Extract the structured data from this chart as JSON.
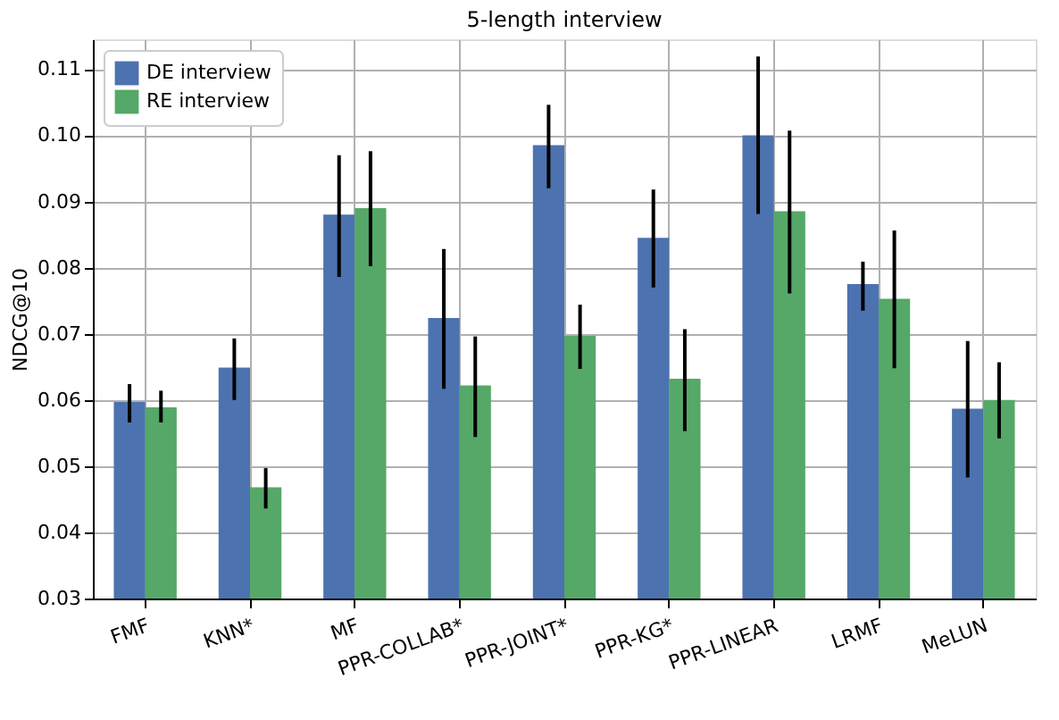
{
  "chart_data": {
    "type": "bar",
    "title": "5-length interview",
    "ylabel": "NDCG@10",
    "categories": [
      "FMF",
      "KNN*",
      "MF",
      "PPR-COLLAB*",
      "PPR-JOINT*",
      "PPR-KG*",
      "PPR-LINEAR",
      "LRMF",
      "MeLUN"
    ],
    "series": [
      {
        "name": "DE interview",
        "color": "#4c72b0",
        "values": [
          0.0597,
          0.0649,
          0.088,
          0.0724,
          0.0985,
          0.0845,
          0.1,
          0.0775,
          0.0587
        ],
        "errors": [
          [
            0.0566,
            0.0624
          ],
          [
            0.06,
            0.0693
          ],
          [
            0.0786,
            0.097
          ],
          [
            0.0617,
            0.0828
          ],
          [
            0.092,
            0.1046
          ],
          [
            0.077,
            0.0918
          ],
          [
            0.0881,
            0.1119
          ],
          [
            0.0735,
            0.0809
          ],
          [
            0.0483,
            0.0689
          ]
        ]
      },
      {
        "name": "RE interview",
        "color": "#55a868",
        "values": [
          0.0589,
          0.0468,
          0.089,
          0.0622,
          0.0697,
          0.0632,
          0.0885,
          0.0753,
          0.06
        ],
        "errors": [
          [
            0.0566,
            0.0614
          ],
          [
            0.0436,
            0.0497
          ],
          [
            0.0802,
            0.0976
          ],
          [
            0.0544,
            0.0696
          ],
          [
            0.0647,
            0.0744
          ],
          [
            0.0553,
            0.0707
          ],
          [
            0.0761,
            0.1007
          ],
          [
            0.0648,
            0.0856
          ],
          [
            0.0542,
            0.0657
          ]
        ]
      }
    ],
    "ylim": [
      0.03,
      0.1145
    ],
    "yticks": [
      0.03,
      0.04,
      0.05,
      0.06,
      0.07,
      0.08,
      0.09,
      {
        "value": 0.1,
        "label": "0.10"
      },
      0.11
    ],
    "grid": true,
    "legend": "top left"
  }
}
